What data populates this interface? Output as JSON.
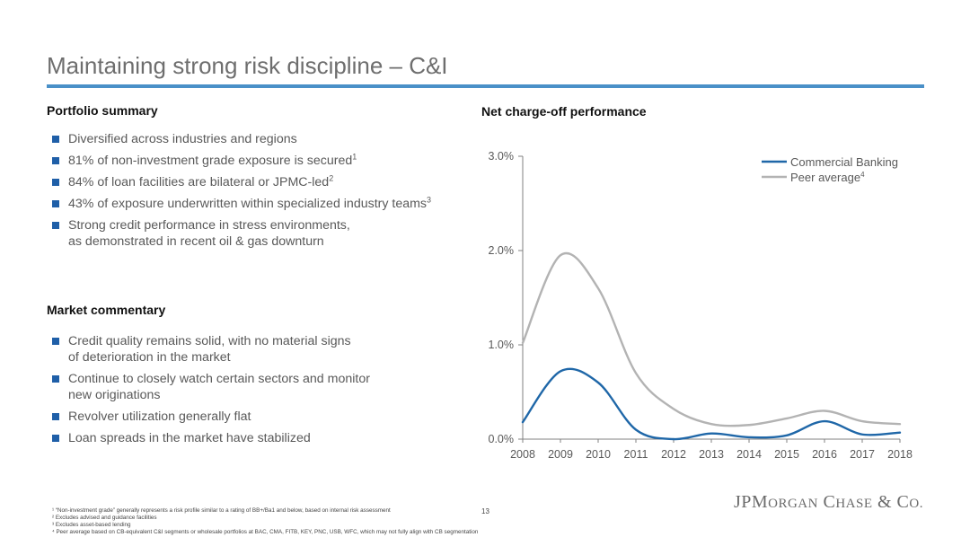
{
  "title": "Maintaining strong risk discipline – C&I",
  "portfolio": {
    "heading": "Portfolio summary",
    "items": [
      {
        "text": "Diversified across industries and regions",
        "sup": ""
      },
      {
        "text": "81% of non-investment grade exposure is secured",
        "sup": "1"
      },
      {
        "text": "84% of loan facilities are bilateral or JPMC-led",
        "sup": "2"
      },
      {
        "text": "43% of exposure underwritten within specialized industry teams",
        "sup": "3"
      },
      {
        "text": "Strong credit performance in stress environments,",
        "text2": "as demonstrated in recent oil & gas downturn",
        "sup": ""
      }
    ]
  },
  "market": {
    "heading": "Market commentary",
    "items": [
      {
        "text": "Credit quality remains solid, with no material signs",
        "text2": "of deterioration in the market"
      },
      {
        "text": "Continue to closely watch certain sectors and monitor",
        "text2": "new originations"
      },
      {
        "text": "Revolver utilization generally flat"
      },
      {
        "text": "Loan spreads in the market have stabilized"
      }
    ]
  },
  "chart_heading": "Net charge-off performance",
  "chart_data": {
    "type": "line",
    "title": "Net charge-off performance",
    "x": [
      2008,
      2009,
      2010,
      2011,
      2012,
      2013,
      2014,
      2015,
      2016,
      2017,
      2018
    ],
    "x_tick_labels": [
      "2008",
      "2009",
      "2010",
      "2011",
      "2012",
      "2013",
      "2014",
      "2015",
      "2016",
      "2017",
      "2018"
    ],
    "y_tick_labels": [
      "0.0%",
      "1.0%",
      "2.0%",
      "3.0%"
    ],
    "y_ticks": [
      0,
      1.0,
      2.0,
      3.0
    ],
    "ylim": [
      0,
      3.0
    ],
    "grid": false,
    "legend_position": "top-right",
    "series": [
      {
        "name": "Commercial Banking",
        "name_sup": "",
        "color": "#1f67a8",
        "values": [
          0.18,
          0.72,
          0.6,
          0.1,
          0.0,
          0.06,
          0.02,
          0.04,
          0.19,
          0.05,
          0.07
        ]
      },
      {
        "name": "Peer average",
        "name_sup": "4",
        "color": "#b3b3b3",
        "values": [
          1.02,
          1.95,
          1.6,
          0.7,
          0.32,
          0.16,
          0.15,
          0.22,
          0.3,
          0.19,
          0.16
        ]
      }
    ]
  },
  "footnotes": [
    "¹ “Non-investment grade” generally represents a risk profile similar to a rating of BB+/Ba1 and below, based on internal risk assessment",
    "² Excludes advised and guidance facilities",
    "³ Excludes asset-based lending",
    "⁴ Peer average based on CB-equivalent C&I segments or wholesale portfolios at BAC, CMA, FITB, KEY, PNC, USB, WFC, which may not fully align with CB segmentation"
  ],
  "page_number": "13",
  "logo": {
    "jp": "JPM",
    "organ": "ORGAN",
    "c": " C",
    "hase": "HASE",
    "amp": " & C",
    "o": "O."
  }
}
